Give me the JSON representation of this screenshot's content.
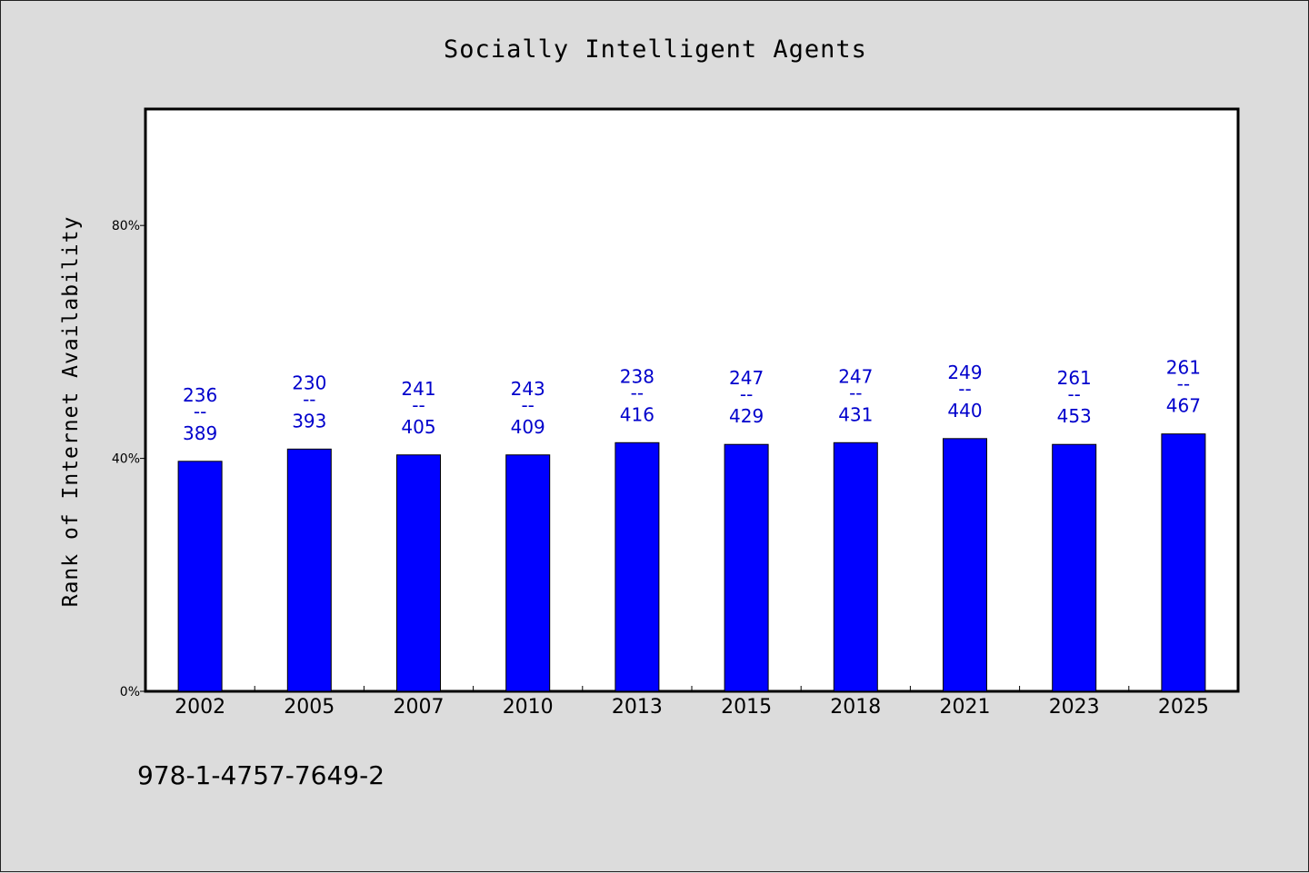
{
  "chart_data": {
    "type": "bar",
    "title": "Socially Intelligent Agents",
    "ylabel": "Rank of Internet Availability",
    "xlabel": "",
    "categories": [
      "2002",
      "2005",
      "2007",
      "2010",
      "2013",
      "2015",
      "2018",
      "2021",
      "2023",
      "2025"
    ],
    "values": [
      39.5,
      41.6,
      40.6,
      40.6,
      42.7,
      42.4,
      42.7,
      43.4,
      42.4,
      44.2
    ],
    "data_labels": [
      {
        "top": "236",
        "mid": "--",
        "bottom": "389"
      },
      {
        "top": "230",
        "mid": "--",
        "bottom": "393"
      },
      {
        "top": "241",
        "mid": "--",
        "bottom": "405"
      },
      {
        "top": "243",
        "mid": "--",
        "bottom": "409"
      },
      {
        "top": "238",
        "mid": "--",
        "bottom": "416"
      },
      {
        "top": "247",
        "mid": "--",
        "bottom": "429"
      },
      {
        "top": "247",
        "mid": "--",
        "bottom": "431"
      },
      {
        "top": "249",
        "mid": "--",
        "bottom": "440"
      },
      {
        "top": "261",
        "mid": "--",
        "bottom": "453"
      },
      {
        "top": "261",
        "mid": "--",
        "bottom": "467"
      }
    ],
    "ylim": [
      0,
      100
    ],
    "yticks": [
      0,
      40,
      80
    ],
    "ytick_labels": [
      "0%",
      "40%",
      "80%"
    ],
    "bar_color": "#0000ff",
    "label_color": "#0000cc",
    "grid": false,
    "footer": "978-1-4757-7649-2"
  }
}
